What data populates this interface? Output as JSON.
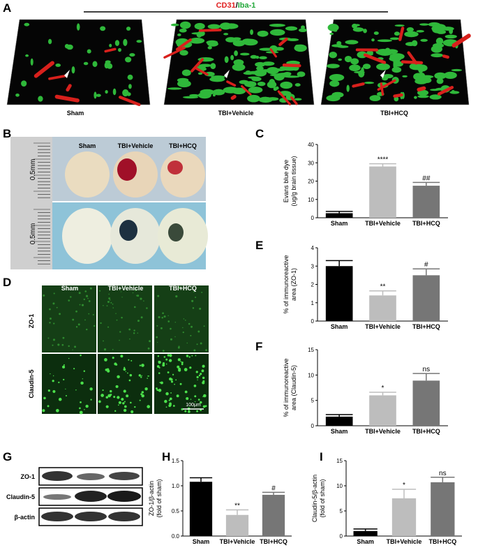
{
  "panel_letters": [
    "A",
    "B",
    "C",
    "D",
    "E",
    "F",
    "G",
    "H",
    "I"
  ],
  "panel_a": {
    "stain_1": "CD31",
    "separator": "/",
    "stain_2": "Iba-1",
    "groups": [
      "Sham",
      "TBI+Vehicle",
      "TBI+HCQ"
    ]
  },
  "panel_b": {
    "groups": [
      "Sham",
      "TBI+Vehicle",
      "TBI+HCQ"
    ],
    "scale_labels": [
      "0.5mm",
      "0.5mm"
    ]
  },
  "panel_d": {
    "groups": [
      "Sham",
      "TBI+Vehicle",
      "TBI+HCQ"
    ],
    "rows": [
      "ZO-1",
      "Claudin-5"
    ],
    "scale_bar": "100μm"
  },
  "panel_g": {
    "rows": [
      "ZO-1",
      "Claudin-5",
      "β-actin"
    ]
  },
  "chart_data": [
    {
      "type": "bar",
      "y_label": [
        "Evans blue dye",
        "(ug/g brain tissue)"
      ],
      "categories": [
        "Sham",
        "TBI+Vehicle",
        "TBI+HCQ"
      ],
      "values": [
        2.5,
        28,
        17.5
      ],
      "errors": [
        1,
        1.5,
        1.8
      ],
      "colors": [
        "#000000",
        "#bdbdbd",
        "#767676"
      ],
      "significance": [
        null,
        "****",
        "##"
      ],
      "ylim": [
        0,
        40
      ],
      "yticks": [
        0,
        10,
        20,
        30,
        40
      ]
    },
    {
      "type": "bar",
      "y_label": [
        "% of immunoreactive",
        "area (ZO-1)"
      ],
      "categories": [
        "Sham",
        "TBI+Vehicle",
        "TBI+HCQ"
      ],
      "values": [
        3.0,
        1.4,
        2.5
      ],
      "errors": [
        0.3,
        0.25,
        0.35
      ],
      "colors": [
        "#000000",
        "#bdbdbd",
        "#767676"
      ],
      "significance": [
        null,
        "**",
        "#"
      ],
      "ylim": [
        0,
        4
      ],
      "yticks": [
        0,
        1,
        2,
        3,
        4
      ]
    },
    {
      "type": "bar",
      "y_label": [
        "% of immunoreactive",
        "area (Claudin-5)"
      ],
      "categories": [
        "Sham",
        "TBI+Vehicle",
        "TBI+HCQ"
      ],
      "values": [
        1.8,
        6.0,
        8.9
      ],
      "errors": [
        0.4,
        0.6,
        1.4
      ],
      "colors": [
        "#000000",
        "#bdbdbd",
        "#767676"
      ],
      "significance": [
        null,
        "*",
        "ns"
      ],
      "ylim": [
        0,
        15
      ],
      "yticks": [
        0,
        5,
        10,
        15
      ]
    },
    {
      "type": "bar",
      "y_label": [
        "ZO-1/β-actin",
        "(fold of sham)"
      ],
      "categories": [
        "Sham",
        "TBI+Vehicle",
        "TBI+HCQ"
      ],
      "values": [
        1.08,
        0.42,
        0.82
      ],
      "errors": [
        0.08,
        0.1,
        0.05
      ],
      "colors": [
        "#000000",
        "#bdbdbd",
        "#767676"
      ],
      "significance": [
        null,
        "**",
        "#"
      ],
      "ylim": [
        0,
        1.5
      ],
      "yticks": [
        {
          "value": 0,
          "label": "0.0"
        },
        0.5,
        {
          "value": 1,
          "label": "1.0"
        },
        1.5
      ]
    },
    {
      "type": "bar",
      "y_label": [
        "Claudin-5/β-actin",
        "(fold of sham)"
      ],
      "categories": [
        "Sham",
        "TBI+Vehicle",
        "TBI+HCQ"
      ],
      "values": [
        1.0,
        7.5,
        10.7
      ],
      "errors": [
        0.4,
        1.8,
        1.0
      ],
      "colors": [
        "#000000",
        "#bdbdbd",
        "#767676"
      ],
      "significance": [
        null,
        "*",
        "ns"
      ],
      "ylim": [
        0,
        15
      ],
      "yticks": [
        0,
        5,
        10,
        15
      ]
    }
  ]
}
